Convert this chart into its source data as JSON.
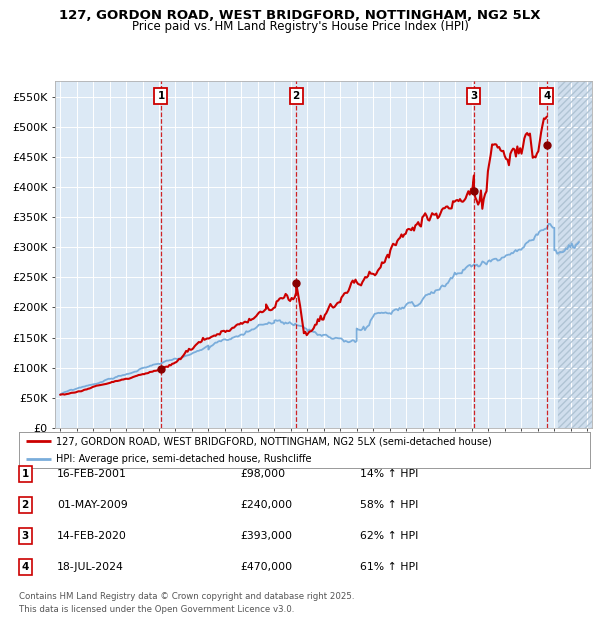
{
  "title": "127, GORDON ROAD, WEST BRIDGFORD, NOTTINGHAM, NG2 5LX",
  "subtitle": "Price paid vs. HM Land Registry's House Price Index (HPI)",
  "ylim": [
    0,
    577000
  ],
  "yticks": [
    0,
    50000,
    100000,
    150000,
    200000,
    250000,
    300000,
    350000,
    400000,
    450000,
    500000,
    550000
  ],
  "ytick_labels": [
    "£0",
    "£50K",
    "£100K",
    "£150K",
    "£200K",
    "£250K",
    "£300K",
    "£350K",
    "£400K",
    "£450K",
    "£500K",
    "£550K"
  ],
  "xlim_start": 1994.7,
  "xlim_end": 2027.3,
  "plot_bg": "#dce9f5",
  "grid_color": "#ffffff",
  "hatch_start": 2025.25,
  "transactions": [
    {
      "num": 1,
      "year": 2001.12,
      "price": 98000,
      "label": "16-FEB-2001",
      "price_str": "£98,000",
      "pct": "14% ↑ HPI"
    },
    {
      "num": 2,
      "year": 2009.33,
      "price": 240000,
      "label": "01-MAY-2009",
      "price_str": "£240,000",
      "pct": "58% ↑ HPI"
    },
    {
      "num": 3,
      "year": 2020.12,
      "price": 393000,
      "label": "14-FEB-2020",
      "price_str": "£393,000",
      "pct": "62% ↑ HPI"
    },
    {
      "num": 4,
      "year": 2024.54,
      "price": 470000,
      "label": "18-JUL-2024",
      "price_str": "£470,000",
      "pct": "61% ↑ HPI"
    }
  ],
  "legend_line1": "127, GORDON ROAD, WEST BRIDGFORD, NOTTINGHAM, NG2 5LX (semi-detached house)",
  "legend_line2": "HPI: Average price, semi-detached house, Rushcliffe",
  "footer1": "Contains HM Land Registry data © Crown copyright and database right 2025.",
  "footer2": "This data is licensed under the Open Government Licence v3.0.",
  "red_line_color": "#cc0000",
  "blue_line_color": "#7aaddb",
  "dot_color": "#880000"
}
